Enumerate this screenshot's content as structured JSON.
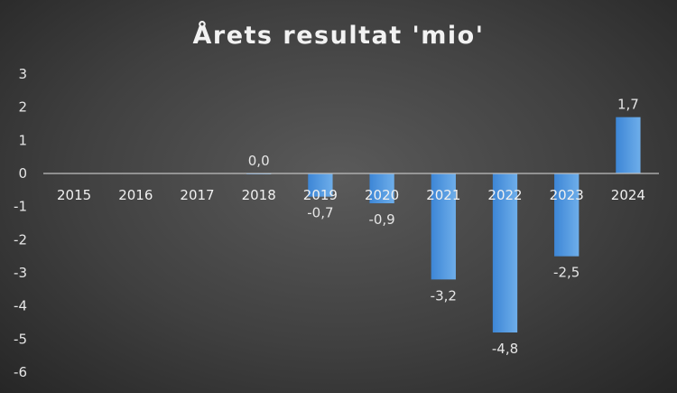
{
  "chart_data": {
    "type": "bar",
    "title": "Årets resultat 'mio'",
    "xlabel": "",
    "ylabel": "",
    "categories": [
      "2015",
      "2016",
      "2017",
      "2018",
      "2019",
      "2020",
      "2021",
      "2022",
      "2023",
      "2024"
    ],
    "values": [
      null,
      null,
      null,
      0.0,
      -0.7,
      -0.9,
      -3.2,
      -4.8,
      -2.5,
      1.7
    ],
    "data_labels": [
      "",
      "",
      "",
      "0,0",
      "-0,7",
      "-0,9",
      "-3,2",
      "-4,8",
      "-2,5",
      "1,7"
    ],
    "ylim": [
      -6,
      3
    ],
    "yticks": [
      "3",
      "2",
      "1",
      "0",
      "-1",
      "-2",
      "-3",
      "-4",
      "-5",
      "-6"
    ],
    "grid": false,
    "legend": "none",
    "colors": {
      "bar": "#4a90d9",
      "bar_light": "#6aaae6",
      "axis": "#bfbfbf"
    }
  }
}
